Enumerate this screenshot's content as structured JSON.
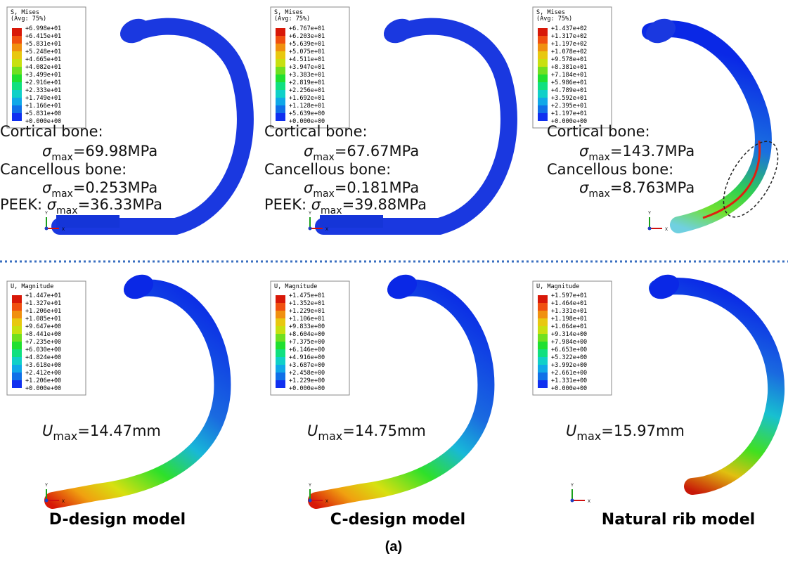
{
  "panels": [
    {
      "legend": {
        "title": "S, Mises",
        "subtitle": "(Avg: 75%)",
        "labels": [
          "+6.998e+01",
          "+6.415e+01",
          "+5.831e+01",
          "+5.248e+01",
          "+4.665e+01",
          "+4.082e+01",
          "+3.499e+01",
          "+2.916e+01",
          "+2.333e+01",
          "+1.749e+01",
          "+1.166e+01",
          "+5.831e+00",
          "+0.000e+00"
        ]
      },
      "annotations": [
        {
          "text": "Cortical bone:"
        },
        {
          "symbol": "σ",
          "sub": "max",
          "text": "=69.98MPa"
        },
        {
          "text": "Cancellous bone:"
        },
        {
          "symbol": "σ",
          "sub": "max",
          "text": "=0.253MPa"
        },
        {
          "prefix": "PEEK: ",
          "symbol": "σ",
          "sub": "max",
          "text": "=36.33MPa"
        }
      ]
    },
    {
      "legend": {
        "title": "S, Mises",
        "subtitle": "(Avg: 75%)",
        "labels": [
          "+6.767e+01",
          "+6.203e+01",
          "+5.639e+01",
          "+5.075e+01",
          "+4.511e+01",
          "+3.947e+01",
          "+3.383e+01",
          "+2.819e+01",
          "+2.256e+01",
          "+1.692e+01",
          "+1.128e+01",
          "+5.639e+00",
          "+0.000e+00"
        ]
      },
      "annotations": [
        {
          "text": "Cortical bone:"
        },
        {
          "symbol": "σ",
          "sub": "max",
          "text": "=67.67MPa"
        },
        {
          "text": "Cancellous bone:"
        },
        {
          "symbol": "σ",
          "sub": "max",
          "text": "=0.181MPa"
        },
        {
          "prefix": "PEEK: ",
          "symbol": "σ",
          "sub": "max",
          "text": "=39.88MPa"
        }
      ]
    },
    {
      "legend": {
        "title": "S, Mises",
        "subtitle": "(Avg: 75%)",
        "labels": [
          "+1.437e+02",
          "+1.317e+02",
          "+1.197e+02",
          "+1.078e+02",
          "+9.578e+01",
          "+8.381e+01",
          "+7.184e+01",
          "+5.986e+01",
          "+4.789e+01",
          "+3.592e+01",
          "+2.395e+01",
          "+1.197e+01",
          "+0.000e+00"
        ]
      },
      "annotations": [
        {
          "text": "Cortical bone:"
        },
        {
          "symbol": "σ",
          "sub": "max",
          "text": "=143.7MPa"
        },
        {
          "text": "Cancellous bone:"
        },
        {
          "symbol": "σ",
          "sub": "max",
          "text": "=8.763MPa"
        }
      ]
    },
    {
      "legend": {
        "title": "U, Magnitude",
        "labels": [
          "+1.447e+01",
          "+1.327e+01",
          "+1.206e+01",
          "+1.085e+01",
          "+9.647e+00",
          "+8.441e+00",
          "+7.235e+00",
          "+6.030e+00",
          "+4.824e+00",
          "+3.618e+00",
          "+2.412e+00",
          "+1.206e+00",
          "+0.000e+00"
        ]
      },
      "annotations": [
        {
          "symbol": "U",
          "sub": "max",
          "text": "=14.47mm"
        }
      ]
    },
    {
      "legend": {
        "title": "U, Magnitude",
        "labels": [
          "+1.475e+01",
          "+1.352e+01",
          "+1.229e+01",
          "+1.106e+01",
          "+9.833e+00",
          "+8.604e+00",
          "+7.375e+00",
          "+6.146e+00",
          "+4.916e+00",
          "+3.687e+00",
          "+2.458e+00",
          "+1.229e+00",
          "+0.000e+00"
        ]
      },
      "annotations": [
        {
          "symbol": "U",
          "sub": "max",
          "text": "=14.75mm"
        }
      ]
    },
    {
      "legend": {
        "title": "U, Magnitude",
        "labels": [
          "+1.597e+01",
          "+1.464e+01",
          "+1.331e+01",
          "+1.198e+01",
          "+1.064e+01",
          "+9.314e+00",
          "+7.984e+00",
          "+6.653e+00",
          "+5.322e+00",
          "+3.992e+00",
          "+2.661e+00",
          "+1.331e+00",
          "+0.000e+00"
        ]
      },
      "annotations": [
        {
          "symbol": "U",
          "sub": "max",
          "text": "=15.97mm"
        }
      ]
    }
  ],
  "triad": {
    "x": "X",
    "y": "Y"
  },
  "model_labels": [
    "D-design model",
    "C-design model",
    "Natural rib model"
  ],
  "caption": "(a)"
}
